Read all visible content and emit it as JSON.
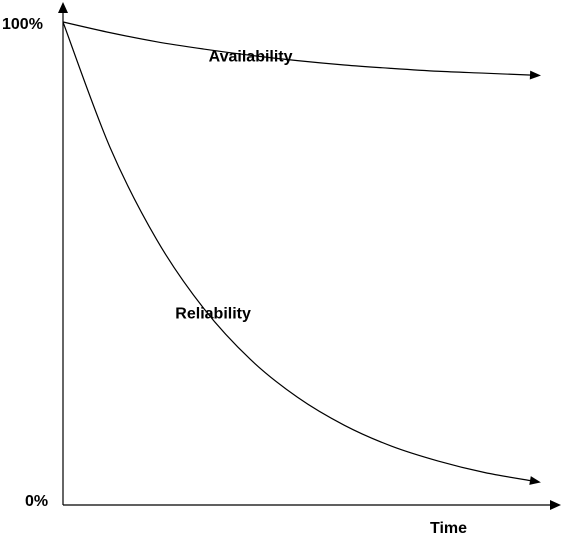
{
  "chart_data": {
    "type": "line",
    "y_tick_labels": [
      "100%",
      "0%"
    ],
    "xlabel": "Time",
    "ylim": [
      0,
      100
    ],
    "grid": false,
    "series": [
      {
        "name": "Availability",
        "x": [
          0,
          0.1,
          0.2,
          0.3,
          0.4,
          0.5,
          0.6,
          0.7,
          0.8,
          0.9,
          1.0
        ],
        "values": [
          100,
          97.8,
          95.9,
          94.4,
          93.1,
          92.0,
          91.1,
          90.4,
          89.8,
          89.4,
          89.0
        ]
      },
      {
        "name": "Reliability",
        "x": [
          0,
          0.1,
          0.2,
          0.3,
          0.4,
          0.5,
          0.6,
          0.7,
          0.8,
          0.9,
          1.0
        ],
        "values": [
          100,
          74.1,
          54.9,
          40.7,
          30.1,
          22.3,
          16.5,
          12.2,
          9.1,
          6.7,
          5.0
        ]
      }
    ]
  },
  "colors": {
    "line": "#000000",
    "background": "#ffffff"
  }
}
